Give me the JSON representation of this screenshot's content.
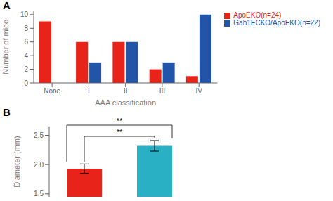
{
  "chart_data": [
    {
      "type": "bar",
      "title": "A",
      "categories": [
        "None",
        "I",
        "II",
        "III",
        "IV"
      ],
      "series": [
        {
          "name": "ApoEKO(n=24)",
          "color": "#e8231a",
          "values": [
            9,
            6,
            6,
            2,
            1
          ]
        },
        {
          "name": "Gab1ECKO/ApoEKO(n=22)",
          "color": "#2255a8",
          "values": [
            0,
            3,
            6,
            3,
            10
          ]
        }
      ],
      "xlabel": "AAA classification",
      "ylabel": "Number of mice",
      "ylim": [
        0,
        10.5
      ],
      "yticks": [
        0,
        2,
        4,
        6,
        8,
        10
      ],
      "legend": "upper right"
    },
    {
      "type": "bar",
      "title": "B",
      "categories": [
        null,
        null
      ],
      "values": [
        1.93,
        2.32
      ],
      "errors": [
        0.08,
        0.09
      ],
      "colors": [
        "#e8231a",
        "#29b0c5"
      ],
      "ylabel": "Diameter (mm)",
      "ylim": [
        1.45,
        2.65
      ],
      "yticks": [
        1.5,
        {
          "value": 2.0,
          "label": "2.0"
        },
        2.5
      ],
      "annotations": [
        "**",
        "**"
      ]
    }
  ]
}
